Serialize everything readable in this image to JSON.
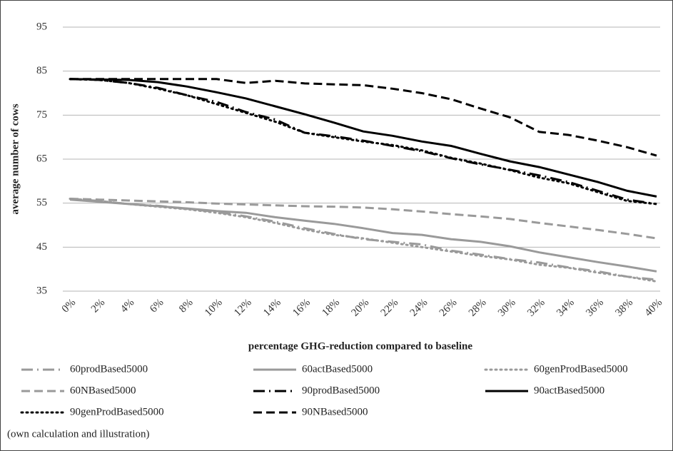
{
  "chart_data": {
    "type": "line",
    "y_label": "average number of cows",
    "x_label": "percentage GHG-reduction compared to baseline",
    "source": "(own calculation and illustration)",
    "categories": [
      "0%",
      "2%",
      "4%",
      "6%",
      "8%",
      "10%",
      "12%",
      "14%",
      "16%",
      "18%",
      "20%",
      "22%",
      "24%",
      "26%",
      "28%",
      "30%",
      "32%",
      "34%",
      "36%",
      "38%",
      "40%"
    ],
    "ylim": [
      35,
      95
    ],
    "yticks": [
      35,
      45,
      55,
      65,
      75,
      85,
      95
    ],
    "grid": true,
    "series": [
      {
        "name": "60prodBased5000",
        "color": "#9a9a9a",
        "dash": "dashdot",
        "values": [
          56,
          55.5,
          54.8,
          54.4,
          53.7,
          53,
          52,
          50.8,
          49.3,
          48,
          46.8,
          46.2,
          45.6,
          44.2,
          43.3,
          42.3,
          41.5,
          40.4,
          39.5,
          38.3,
          37.6
        ]
      },
      {
        "name": "60actBased5000",
        "color": "#9a9a9a",
        "dash": "solid",
        "values": [
          55.8,
          55.3,
          54.8,
          54.3,
          53.8,
          53.2,
          52.8,
          51.8,
          51,
          50.3,
          49.3,
          48.2,
          47.8,
          46.8,
          46.2,
          45.2,
          43.8,
          42.7,
          41.6,
          40.6,
          39.5
        ]
      },
      {
        "name": "60genProdBased5000",
        "color": "#9a9a9a",
        "dash": "dotted",
        "values": [
          56,
          55.5,
          54.8,
          54.2,
          53.6,
          52.8,
          51.8,
          50.5,
          49,
          47.8,
          47,
          46,
          45,
          44,
          43,
          42.2,
          41,
          40.3,
          39.2,
          38.3,
          37.2
        ]
      },
      {
        "name": "60NBased5000",
        "color": "#9a9a9a",
        "dash": "dashed",
        "values": [
          56,
          55.8,
          55.6,
          55.4,
          55.2,
          54.9,
          54.7,
          54.5,
          54.3,
          54.2,
          54,
          53.6,
          53.1,
          52.5,
          52,
          51.4,
          50.5,
          49.7,
          48.9,
          48,
          47
        ]
      },
      {
        "name": "90prodBased5000",
        "color": "#000000",
        "dash": "dashdot",
        "values": [
          83.2,
          83,
          82.3,
          81.2,
          79.5,
          78,
          75.7,
          74,
          71,
          70.2,
          69.2,
          68,
          66.8,
          65.2,
          63.8,
          62.6,
          61.3,
          59.8,
          57.8,
          55.8,
          54.8
        ]
      },
      {
        "name": "90actBased5000",
        "color": "#000000",
        "dash": "solid",
        "values": [
          83.2,
          83.1,
          83,
          82.5,
          81.5,
          80.2,
          78.8,
          77,
          75.2,
          73.3,
          71.3,
          70.3,
          69,
          68,
          66.2,
          64.5,
          63.2,
          61.5,
          59.8,
          57.8,
          56.5
        ]
      },
      {
        "name": "90genProdBased5000",
        "color": "#000000",
        "dash": "dotted",
        "values": [
          83.2,
          83,
          82.3,
          81,
          79.5,
          77.5,
          75.5,
          73.5,
          71,
          70,
          69,
          68.2,
          67,
          65.3,
          64,
          62.5,
          60.8,
          59.5,
          57.5,
          55.5,
          54.8
        ]
      },
      {
        "name": "90NBased5000",
        "color": "#000000",
        "dash": "dashed",
        "values": [
          83.2,
          83.2,
          83.2,
          83.2,
          83.2,
          83.2,
          82.3,
          82.8,
          82.2,
          82,
          81.8,
          81,
          80,
          78.6,
          76.5,
          74.5,
          71.2,
          70.5,
          69.2,
          67.7,
          65.8
        ]
      }
    ]
  }
}
